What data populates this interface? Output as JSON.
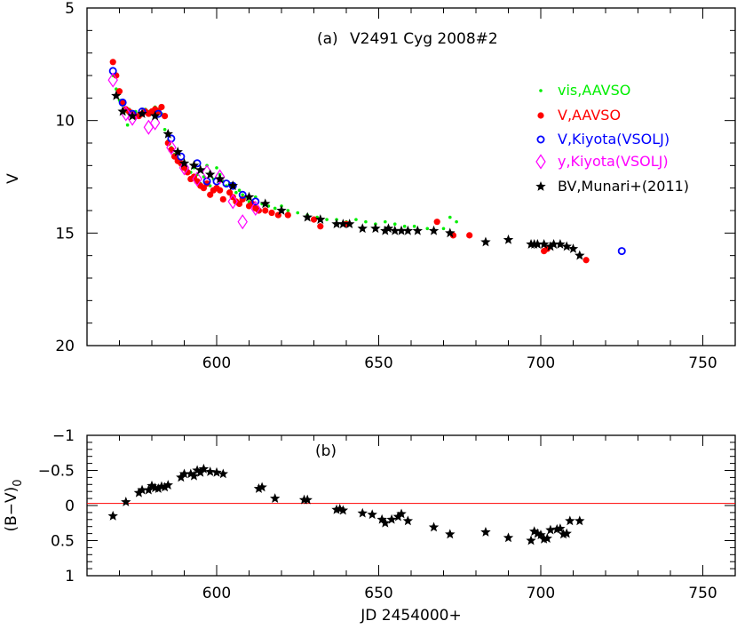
{
  "chart_data": [
    {
      "type": "scatter",
      "panel_label": "(a)",
      "title": "V2491 Cyg 2008#2",
      "xlabel": "",
      "ylabel": "V",
      "xlim": [
        560,
        760
      ],
      "ylim": [
        20,
        5
      ],
      "y_inverted": true,
      "grid": false,
      "legend_position": "right",
      "x_ticks": [
        600,
        650,
        700,
        750
      ],
      "y_ticks": [
        5,
        10,
        15,
        20
      ],
      "series": [
        {
          "name": "vis,AAVSO",
          "marker": "dot",
          "color": "#00ee00",
          "points": [
            [
              568,
              8.0
            ],
            [
              569,
              8.6
            ],
            [
              570,
              9.1
            ],
            [
              571,
              9.3
            ],
            [
              572,
              9.6
            ],
            [
              572.5,
              10.2
            ],
            [
              573,
              9.5
            ],
            [
              574,
              9.7
            ],
            [
              575,
              9.6
            ],
            [
              576,
              9.8
            ],
            [
              577,
              9.7
            ],
            [
              578,
              9.5
            ],
            [
              579,
              9.6
            ],
            [
              580,
              9.7
            ],
            [
              581,
              9.4
            ],
            [
              582,
              9.5
            ],
            [
              583,
              9.7
            ],
            [
              584,
              10.4
            ],
            [
              585,
              10.9
            ],
            [
              586,
              11.2
            ],
            [
              587,
              11.5
            ],
            [
              588,
              11.7
            ],
            [
              589,
              12.0
            ],
            [
              590,
              12.1
            ],
            [
              591,
              12.2
            ],
            [
              592,
              12.3
            ],
            [
              593,
              12.1
            ],
            [
              594,
              12.4
            ],
            [
              595,
              12.2
            ],
            [
              596,
              12.5
            ],
            [
              597,
              12.0
            ],
            [
              598,
              12.3
            ],
            [
              599,
              12.6
            ],
            [
              600,
              12.1
            ],
            [
              601,
              12.4
            ],
            [
              602,
              12.7
            ],
            [
              603,
              12.9
            ],
            [
              604,
              12.8
            ],
            [
              605,
              13.0
            ],
            [
              606,
              13.2
            ],
            [
              607,
              13.1
            ],
            [
              608,
              13.3
            ],
            [
              609,
              13.4
            ],
            [
              610,
              13.6
            ],
            [
              612,
              13.4
            ],
            [
              614,
              13.7
            ],
            [
              616,
              13.8
            ],
            [
              618,
              13.9
            ],
            [
              620,
              13.8
            ],
            [
              622,
              14.0
            ],
            [
              625,
              14.1
            ],
            [
              628,
              14.2
            ],
            [
              631,
              14.3
            ],
            [
              634,
              14.4
            ],
            [
              637,
              14.4
            ],
            [
              640,
              14.5
            ],
            [
              643,
              14.4
            ],
            [
              646,
              14.5
            ],
            [
              649,
              14.6
            ],
            [
              652,
              14.5
            ],
            [
              655,
              14.6
            ],
            [
              658,
              14.7
            ],
            [
              661,
              14.7
            ],
            [
              665,
              14.8
            ],
            [
              670,
              14.8
            ],
            [
              672,
              14.3
            ],
            [
              674,
              14.5
            ],
            [
              595,
              12.8
            ],
            [
              598,
              12.9
            ],
            [
              601,
              13.1
            ]
          ]
        },
        {
          "name": "V,AAVSO",
          "marker": "filled-circle",
          "color": "#ff0000",
          "points": [
            [
              568,
              7.4
            ],
            [
              569,
              8.0
            ],
            [
              570,
              8.7
            ],
            [
              571,
              9.2
            ],
            [
              572,
              9.5
            ],
            [
              573,
              9.6
            ],
            [
              574,
              9.7
            ],
            [
              575,
              9.8
            ],
            [
              576,
              9.8
            ],
            [
              577,
              9.7
            ],
            [
              578,
              9.6
            ],
            [
              579,
              9.7
            ],
            [
              580,
              9.6
            ],
            [
              581,
              9.5
            ],
            [
              582,
              9.6
            ],
            [
              583,
              9.4
            ],
            [
              584,
              9.8
            ],
            [
              585,
              11.0
            ],
            [
              586,
              11.3
            ],
            [
              587,
              11.6
            ],
            [
              588,
              11.8
            ],
            [
              589,
              11.9
            ],
            [
              590,
              12.1
            ],
            [
              591,
              12.3
            ],
            [
              592,
              12.6
            ],
            [
              593,
              12.5
            ],
            [
              594,
              12.7
            ],
            [
              595,
              12.9
            ],
            [
              596,
              13.0
            ],
            [
              597,
              12.8
            ],
            [
              598,
              13.3
            ],
            [
              599,
              13.1
            ],
            [
              600,
              13.0
            ],
            [
              601,
              13.1
            ],
            [
              602,
              13.5
            ],
            [
              604,
              13.2
            ],
            [
              605,
              13.4
            ],
            [
              606,
              13.6
            ],
            [
              607,
              13.7
            ],
            [
              608,
              13.5
            ],
            [
              610,
              13.8
            ],
            [
              611,
              13.7
            ],
            [
              612,
              13.9
            ],
            [
              613,
              14.0
            ],
            [
              615,
              14.0
            ],
            [
              617,
              14.1
            ],
            [
              619,
              14.2
            ],
            [
              622,
              14.2
            ],
            [
              630,
              14.4
            ],
            [
              632,
              14.7
            ],
            [
              640,
              14.6
            ],
            [
              668,
              14.5
            ],
            [
              673,
              15.1
            ],
            [
              678,
              15.1
            ],
            [
              701,
              15.8
            ],
            [
              702,
              15.7
            ],
            [
              714,
              16.2
            ]
          ]
        },
        {
          "name": "V,Kiyota(VSOLJ)",
          "marker": "open-circle",
          "color": "#0000ff",
          "points": [
            [
              568,
              7.8
            ],
            [
              571,
              9.2
            ],
            [
              574,
              9.7
            ],
            [
              577,
              9.6
            ],
            [
              582,
              9.7
            ],
            [
              586,
              10.8
            ],
            [
              589,
              11.6
            ],
            [
              594,
              11.9
            ],
            [
              597,
              12.7
            ],
            [
              600,
              12.7
            ],
            [
              603,
              12.8
            ],
            [
              605,
              12.9
            ],
            [
              608,
              13.3
            ],
            [
              612,
              13.6
            ],
            [
              725,
              15.8
            ]
          ]
        },
        {
          "name": "y,Kiyota(VSOLJ)",
          "marker": "open-diamond",
          "color": "#ff00ff",
          "points": [
            [
              568,
              8.2
            ],
            [
              572,
              9.7
            ],
            [
              574,
              9.9
            ],
            [
              579,
              10.3
            ],
            [
              581,
              10.1
            ],
            [
              586,
              11.2
            ],
            [
              590,
              12.1
            ],
            [
              594,
              12.6
            ],
            [
              597,
              12.3
            ],
            [
              601,
              12.5
            ],
            [
              605,
              13.6
            ],
            [
              608,
              14.5
            ],
            [
              612,
              13.9
            ]
          ]
        },
        {
          "name": "BV,Munari+(2011)",
          "marker": "star",
          "color": "#000000",
          "points": [
            [
              569,
              8.9
            ],
            [
              571,
              9.6
            ],
            [
              574,
              9.8
            ],
            [
              577,
              9.7
            ],
            [
              581,
              9.8
            ],
            [
              585,
              10.6
            ],
            [
              588,
              11.4
            ],
            [
              590,
              11.9
            ],
            [
              593,
              12.0
            ],
            [
              595,
              12.2
            ],
            [
              598,
              12.4
            ],
            [
              601,
              12.6
            ],
            [
              605,
              12.9
            ],
            [
              610,
              13.4
            ],
            [
              615,
              13.7
            ],
            [
              620,
              14.0
            ],
            [
              628,
              14.3
            ],
            [
              632,
              14.4
            ],
            [
              637,
              14.6
            ],
            [
              639,
              14.6
            ],
            [
              641,
              14.6
            ],
            [
              645,
              14.8
            ],
            [
              649,
              14.8
            ],
            [
              652,
              14.9
            ],
            [
              653,
              14.8
            ],
            [
              655,
              14.9
            ],
            [
              657,
              14.9
            ],
            [
              659,
              14.9
            ],
            [
              662,
              14.9
            ],
            [
              667,
              14.9
            ],
            [
              672,
              15.0
            ],
            [
              683,
              15.4
            ],
            [
              690,
              15.3
            ],
            [
              697,
              15.5
            ],
            [
              698,
              15.5
            ],
            [
              699,
              15.5
            ],
            [
              701,
              15.5
            ],
            [
              703,
              15.6
            ],
            [
              704,
              15.5
            ],
            [
              706,
              15.5
            ],
            [
              708,
              15.6
            ],
            [
              710,
              15.7
            ],
            [
              712,
              16.0
            ]
          ]
        }
      ]
    },
    {
      "type": "scatter",
      "panel_label": "(b)",
      "title": "",
      "xlabel": "JD 2454000+",
      "ylabel": "(B−V)",
      "ylabel_subscript": "0",
      "xlim": [
        560,
        760
      ],
      "ylim": [
        1,
        -1
      ],
      "y_inverted": true,
      "grid": false,
      "x_ticks": [
        600,
        650,
        700,
        750
      ],
      "y_ticks": [
        -1,
        -0.5,
        0,
        0.5,
        1
      ],
      "y_tick_labels": [
        "−1",
        "−0.5",
        "0",
        "0.5",
        "1"
      ],
      "reference_line": {
        "y": -0.03,
        "color": "#ff0000"
      },
      "series": [
        {
          "name": "",
          "marker": "star",
          "color": "#000000",
          "points": [
            [
              568,
              0.15
            ],
            [
              572,
              -0.05
            ],
            [
              576,
              -0.18
            ],
            [
              577,
              -0.22
            ],
            [
              579,
              -0.22
            ],
            [
              580,
              -0.28
            ],
            [
              581,
              -0.25
            ],
            [
              582,
              -0.24
            ],
            [
              583,
              -0.27
            ],
            [
              584,
              -0.26
            ],
            [
              585,
              -0.29
            ],
            [
              589,
              -0.4
            ],
            [
              590,
              -0.45
            ],
            [
              592,
              -0.45
            ],
            [
              593,
              -0.42
            ],
            [
              594,
              -0.5
            ],
            [
              595,
              -0.47
            ],
            [
              596,
              -0.52
            ],
            [
              598,
              -0.48
            ],
            [
              600,
              -0.47
            ],
            [
              602,
              -0.45
            ],
            [
              613,
              -0.24
            ],
            [
              614,
              -0.26
            ],
            [
              618,
              -0.1
            ],
            [
              627,
              -0.08
            ],
            [
              628,
              -0.08
            ],
            [
              637,
              0.06
            ],
            [
              638,
              0.05
            ],
            [
              639,
              0.07
            ],
            [
              645,
              0.11
            ],
            [
              648,
              0.13
            ],
            [
              651,
              0.2
            ],
            [
              652,
              0.25
            ],
            [
              654,
              0.2
            ],
            [
              656,
              0.16
            ],
            [
              657,
              0.12
            ],
            [
              659,
              0.22
            ],
            [
              667,
              0.31
            ],
            [
              672,
              0.41
            ],
            [
              683,
              0.38
            ],
            [
              690,
              0.46
            ],
            [
              697,
              0.5
            ],
            [
              698,
              0.37
            ],
            [
              699,
              0.4
            ],
            [
              700,
              0.42
            ],
            [
              701,
              0.48
            ],
            [
              702,
              0.47
            ],
            [
              703,
              0.35
            ],
            [
              705,
              0.34
            ],
            [
              706,
              0.33
            ],
            [
              707,
              0.41
            ],
            [
              708,
              0.4
            ],
            [
              709,
              0.22
            ],
            [
              712,
              0.22
            ]
          ]
        }
      ]
    }
  ]
}
